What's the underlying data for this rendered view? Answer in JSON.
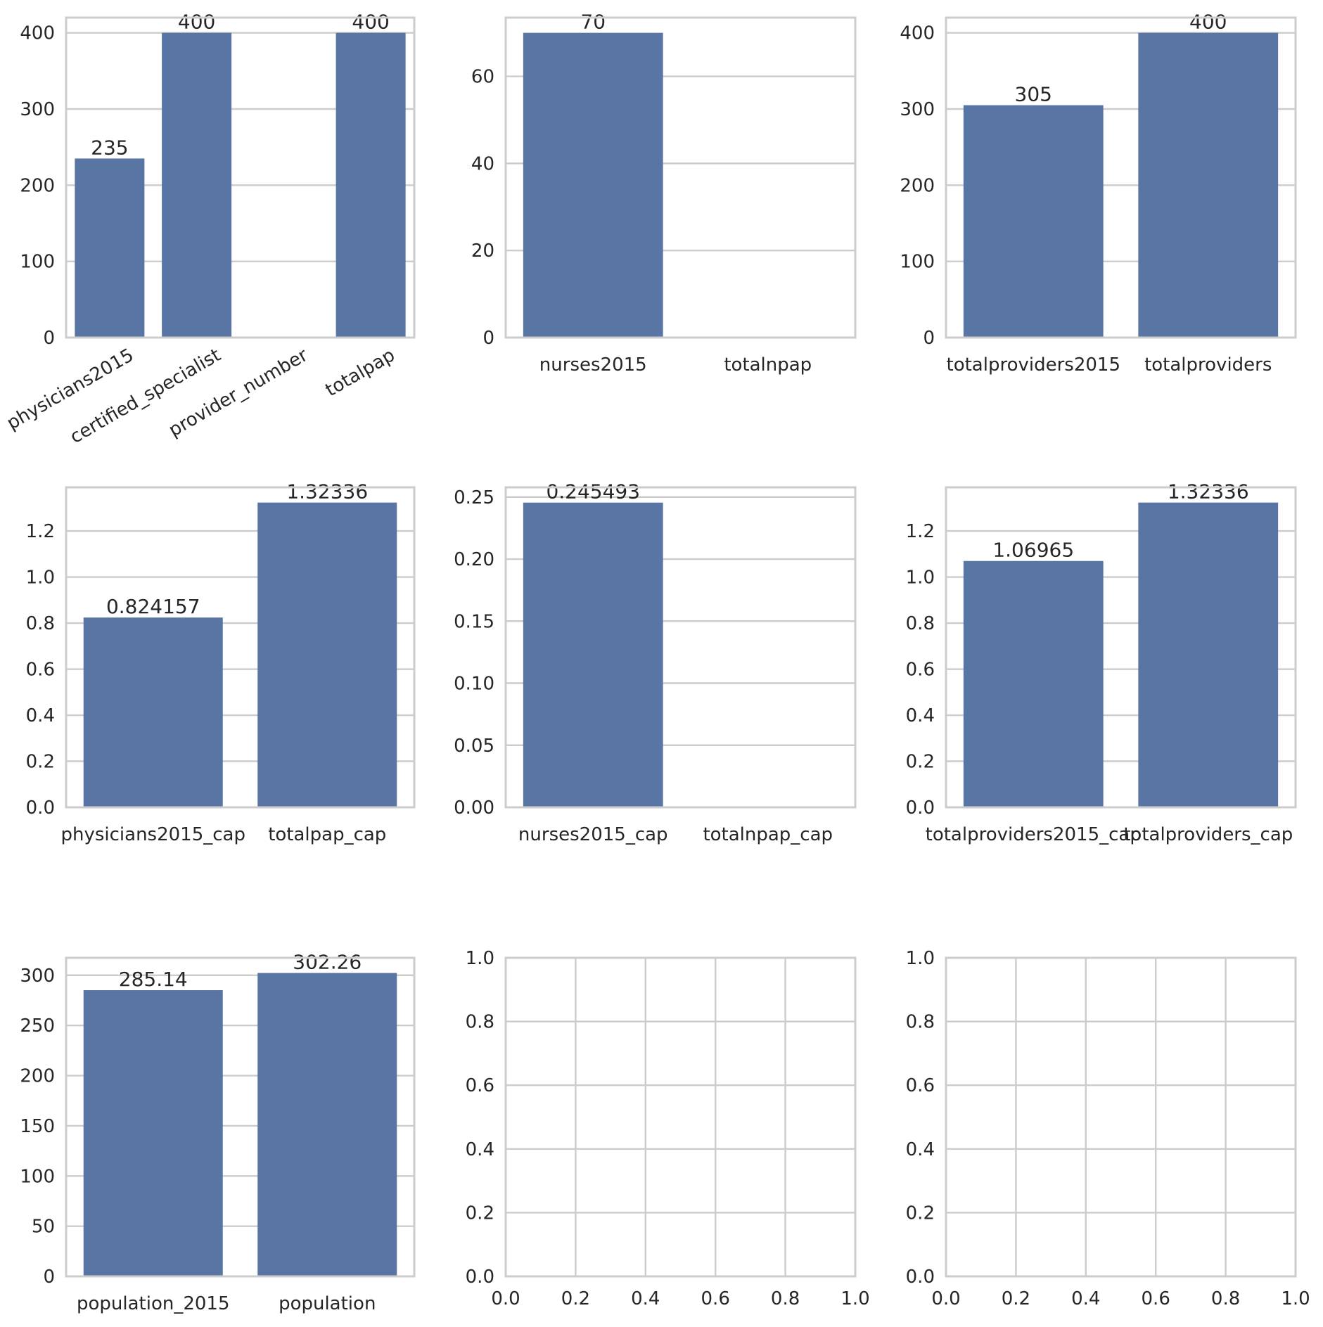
{
  "bar_color": "#5975a4",
  "chart_data": [
    {
      "type": "bar",
      "categories": [
        "physicians2015",
        "certified_specialist",
        "provider_number",
        "totalpap"
      ],
      "values": [
        235,
        400,
        null,
        400
      ],
      "labels": [
        "235",
        "400",
        "",
        "400"
      ],
      "ylim": [
        0,
        420
      ],
      "yticks": [
        0,
        100,
        200,
        300,
        400
      ],
      "ytick_labels": [
        "0",
        "100",
        "200",
        "300",
        "400"
      ],
      "rotate_xticks": true,
      "title": "",
      "xlabel": "",
      "ylabel": ""
    },
    {
      "type": "bar",
      "categories": [
        "nurses2015",
        "totalnpap"
      ],
      "values": [
        70,
        null
      ],
      "labels": [
        "70",
        ""
      ],
      "ylim": [
        0,
        73.5
      ],
      "yticks": [
        0,
        20,
        40,
        60
      ],
      "ytick_labels": [
        "0",
        "20",
        "40",
        "60"
      ],
      "title": "",
      "xlabel": "",
      "ylabel": ""
    },
    {
      "type": "bar",
      "categories": [
        "totalproviders2015",
        "totalproviders"
      ],
      "values": [
        305,
        400
      ],
      "labels": [
        "305",
        "400"
      ],
      "ylim": [
        0,
        420
      ],
      "yticks": [
        0,
        100,
        200,
        300,
        400
      ],
      "ytick_labels": [
        "0",
        "100",
        "200",
        "300",
        "400"
      ],
      "title": "",
      "xlabel": "",
      "ylabel": ""
    },
    {
      "type": "bar",
      "categories": [
        "physicians2015_cap",
        "totalpap_cap"
      ],
      "values": [
        0.824157,
        1.32336
      ],
      "labels": [
        "0.824157",
        "1.32336"
      ],
      "ylim": [
        0,
        1.3895
      ],
      "yticks": [
        0,
        0.2,
        0.4,
        0.6,
        0.8,
        1.0,
        1.2
      ],
      "ytick_labels": [
        "0.0",
        "0.2",
        "0.4",
        "0.6",
        "0.8",
        "1.0",
        "1.2"
      ],
      "title": "",
      "xlabel": "",
      "ylabel": ""
    },
    {
      "type": "bar",
      "categories": [
        "nurses2015_cap",
        "totalnpap_cap"
      ],
      "values": [
        0.245493,
        null
      ],
      "labels": [
        "0.245493",
        ""
      ],
      "ylim": [
        0,
        0.2578
      ],
      "yticks": [
        0,
        0.05,
        0.1,
        0.15,
        0.2,
        0.25
      ],
      "ytick_labels": [
        "0.00",
        "0.05",
        "0.10",
        "0.15",
        "0.20",
        "0.25"
      ],
      "title": "",
      "xlabel": "",
      "ylabel": ""
    },
    {
      "type": "bar",
      "categories": [
        "totalproviders2015_cap",
        "totalproviders_cap"
      ],
      "values": [
        1.06965,
        1.32336
      ],
      "labels": [
        "1.06965",
        "1.32336"
      ],
      "ylim": [
        0,
        1.3895
      ],
      "yticks": [
        0,
        0.2,
        0.4,
        0.6,
        0.8,
        1.0,
        1.2
      ],
      "ytick_labels": [
        "0.0",
        "0.2",
        "0.4",
        "0.6",
        "0.8",
        "1.0",
        "1.2"
      ],
      "title": "",
      "xlabel": "",
      "ylabel": ""
    },
    {
      "type": "bar",
      "categories": [
        "population_2015",
        "population"
      ],
      "values": [
        285.14,
        302.26
      ],
      "labels": [
        "285.14",
        "302.26"
      ],
      "ylim": [
        0,
        317.4
      ],
      "yticks": [
        0,
        50,
        100,
        150,
        200,
        250,
        300
      ],
      "ytick_labels": [
        "0",
        "50",
        "100",
        "150",
        "200",
        "250",
        "300"
      ],
      "title": "",
      "xlabel": "",
      "ylabel": ""
    },
    {
      "type": "empty",
      "xlim": [
        0,
        1
      ],
      "ylim": [
        0,
        1
      ],
      "xticks": [
        0,
        0.2,
        0.4,
        0.6,
        0.8,
        1.0
      ],
      "xtick_labels": [
        "0.0",
        "0.2",
        "0.4",
        "0.6",
        "0.8",
        "1.0"
      ],
      "yticks": [
        0,
        0.2,
        0.4,
        0.6,
        0.8,
        1.0
      ],
      "ytick_labels": [
        "0.0",
        "0.2",
        "0.4",
        "0.6",
        "0.8",
        "1.0"
      ],
      "title": "",
      "xlabel": "",
      "ylabel": ""
    },
    {
      "type": "empty",
      "xlim": [
        0,
        1
      ],
      "ylim": [
        0,
        1
      ],
      "xticks": [
        0,
        0.2,
        0.4,
        0.6,
        0.8,
        1.0
      ],
      "xtick_labels": [
        "0.0",
        "0.2",
        "0.4",
        "0.6",
        "0.8",
        "1.0"
      ],
      "yticks": [
        0,
        0.2,
        0.4,
        0.6,
        0.8,
        1.0
      ],
      "ytick_labels": [
        "0.0",
        "0.2",
        "0.4",
        "0.6",
        "0.8",
        "1.0"
      ],
      "title": "",
      "xlabel": "",
      "ylabel": ""
    }
  ]
}
